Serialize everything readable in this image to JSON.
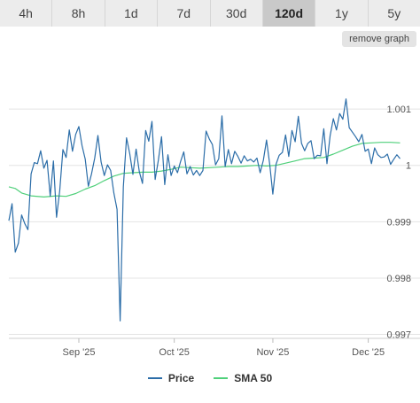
{
  "tabs": [
    {
      "label": "4h",
      "active": false
    },
    {
      "label": "8h",
      "active": false
    },
    {
      "label": "1d",
      "active": false
    },
    {
      "label": "7d",
      "active": false
    },
    {
      "label": "30d",
      "active": false
    },
    {
      "label": "120d",
      "active": true
    },
    {
      "label": "1y",
      "active": false
    },
    {
      "label": "5y",
      "active": false
    }
  ],
  "remove_graph_label": "remove graph",
  "legend": {
    "price_label": "Price",
    "sma_label": "SMA 50"
  },
  "colors": {
    "price": "#2b6da8",
    "sma": "#4fd07a",
    "grid": "#e4e4e4",
    "axis_text": "#555555"
  },
  "chart_data": {
    "type": "line",
    "x_start": "2025-08-10",
    "x_end": "2025-12-05",
    "x_ticks": [
      {
        "date": "2025-09-01",
        "label": "Sep '25"
      },
      {
        "date": "2025-10-01",
        "label": "Oct '25"
      },
      {
        "date": "2025-11-01",
        "label": "Nov '25"
      },
      {
        "date": "2025-12-01",
        "label": "Dec '25"
      }
    ],
    "y_ticks": [
      0.997,
      0.998,
      0.999,
      1,
      1.001
    ],
    "y_tick_labels": [
      "0.997",
      "0.998",
      "0.999",
      "1",
      "1.001"
    ],
    "ylim": [
      0.99693,
      1.00193
    ],
    "grid": true,
    "legend_position": "bottom-center",
    "series": [
      {
        "name": "Price",
        "points": [
          [
            "2025-08-10",
            0.99902
          ],
          [
            "2025-08-11",
            0.99932
          ],
          [
            "2025-08-12",
            0.99846
          ],
          [
            "2025-08-13",
            0.99862
          ],
          [
            "2025-08-14",
            0.99912
          ],
          [
            "2025-08-15",
            0.99897
          ],
          [
            "2025-08-16",
            0.99886
          ],
          [
            "2025-08-17",
            0.99985
          ],
          [
            "2025-08-18",
            1.00005
          ],
          [
            "2025-08-19",
            1.00003
          ],
          [
            "2025-08-20",
            1.00026
          ],
          [
            "2025-08-21",
            0.99995
          ],
          [
            "2025-08-22",
            1.00009
          ],
          [
            "2025-08-23",
            0.99945
          ],
          [
            "2025-08-24",
            1.00008
          ],
          [
            "2025-08-25",
            0.99908
          ],
          [
            "2025-08-26",
            0.99955
          ],
          [
            "2025-08-27",
            1.00028
          ],
          [
            "2025-08-28",
            1.00014
          ],
          [
            "2025-08-29",
            1.00063
          ],
          [
            "2025-08-30",
            1.00025
          ],
          [
            "2025-08-31",
            1.00055
          ],
          [
            "2025-09-01",
            1.00069
          ],
          [
            "2025-09-02",
            1.00035
          ],
          [
            "2025-09-03",
            1.00011
          ],
          [
            "2025-09-04",
            0.99963
          ],
          [
            "2025-09-05",
            0.99985
          ],
          [
            "2025-09-06",
            1.00013
          ],
          [
            "2025-09-07",
            1.00053
          ],
          [
            "2025-09-08",
            1.00006
          ],
          [
            "2025-09-09",
            0.99982
          ],
          [
            "2025-09-10",
            1.00001
          ],
          [
            "2025-09-11",
            0.99991
          ],
          [
            "2025-09-12",
            0.99951
          ],
          [
            "2025-09-13",
            0.99922
          ],
          [
            "2025-09-14",
            0.99724
          ],
          [
            "2025-09-15",
            0.99962
          ],
          [
            "2025-09-16",
            1.00049
          ],
          [
            "2025-09-17",
            1.00021
          ],
          [
            "2025-09-18",
            0.99984
          ],
          [
            "2025-09-19",
            1.00029
          ],
          [
            "2025-09-20",
            0.99989
          ],
          [
            "2025-09-21",
            0.99968
          ],
          [
            "2025-09-22",
            1.00062
          ],
          [
            "2025-09-23",
            1.00043
          ],
          [
            "2025-09-24",
            1.00078
          ],
          [
            "2025-09-25",
            0.99975
          ],
          [
            "2025-09-26",
            1.00009
          ],
          [
            "2025-09-27",
            1.00051
          ],
          [
            "2025-09-28",
            0.99966
          ],
          [
            "2025-09-29",
            1.00019
          ],
          [
            "2025-09-30",
            0.99982
          ],
          [
            "2025-10-01",
            0.99999
          ],
          [
            "2025-10-02",
            0.99987
          ],
          [
            "2025-10-03",
            1.00007
          ],
          [
            "2025-10-04",
            1.00024
          ],
          [
            "2025-10-05",
            0.99985
          ],
          [
            "2025-10-06",
            0.99998
          ],
          [
            "2025-10-07",
            0.99983
          ],
          [
            "2025-10-08",
            0.99991
          ],
          [
            "2025-10-09",
            0.99982
          ],
          [
            "2025-10-10",
            0.99991
          ],
          [
            "2025-10-11",
            1.00061
          ],
          [
            "2025-10-12",
            1.00047
          ],
          [
            "2025-10-13",
            1.00037
          ],
          [
            "2025-10-14",
            1.00001
          ],
          [
            "2025-10-15",
            1.00012
          ],
          [
            "2025-10-16",
            1.00088
          ],
          [
            "2025-10-17",
            0.99998
          ],
          [
            "2025-10-18",
            1.00028
          ],
          [
            "2025-10-19",
            1.00003
          ],
          [
            "2025-10-20",
            1.00025
          ],
          [
            "2025-10-21",
            1.00016
          ],
          [
            "2025-10-22",
            1.00004
          ],
          [
            "2025-10-23",
            1.00017
          ],
          [
            "2025-10-24",
            1.00008
          ],
          [
            "2025-10-25",
            1.00011
          ],
          [
            "2025-10-26",
            1.00006
          ],
          [
            "2025-10-27",
            1.00013
          ],
          [
            "2025-10-28",
            0.99987
          ],
          [
            "2025-10-29",
            1.00009
          ],
          [
            "2025-10-30",
            1.00045
          ],
          [
            "2025-10-31",
            1.00002
          ],
          [
            "2025-11-01",
            0.99949
          ],
          [
            "2025-11-02",
            1.00002
          ],
          [
            "2025-11-03",
            1.00018
          ],
          [
            "2025-11-04",
            1.00023
          ],
          [
            "2025-11-05",
            1.00054
          ],
          [
            "2025-11-06",
            1.00016
          ],
          [
            "2025-11-07",
            1.00062
          ],
          [
            "2025-11-08",
            1.00042
          ],
          [
            "2025-11-09",
            1.00087
          ],
          [
            "2025-11-10",
            1.00039
          ],
          [
            "2025-11-11",
            1.00026
          ],
          [
            "2025-11-12",
            1.00039
          ],
          [
            "2025-11-13",
            1.00044
          ],
          [
            "2025-11-14",
            1.00012
          ],
          [
            "2025-11-15",
            1.00018
          ],
          [
            "2025-11-16",
            1.00017
          ],
          [
            "2025-11-17",
            1.00065
          ],
          [
            "2025-11-18",
            1.00003
          ],
          [
            "2025-11-19",
            1.00053
          ],
          [
            "2025-11-20",
            1.00083
          ],
          [
            "2025-11-21",
            1.00063
          ],
          [
            "2025-11-22",
            1.00092
          ],
          [
            "2025-11-23",
            1.00082
          ],
          [
            "2025-11-24",
            1.00118
          ],
          [
            "2025-11-25",
            1.00067
          ],
          [
            "2025-11-26",
            1.00059
          ],
          [
            "2025-11-27",
            1.00051
          ],
          [
            "2025-11-28",
            1.00042
          ],
          [
            "2025-11-29",
            1.00055
          ],
          [
            "2025-11-30",
            1.00025
          ],
          [
            "2025-12-01",
            1.00029
          ],
          [
            "2025-12-02",
            1.00003
          ],
          [
            "2025-12-03",
            1.00031
          ],
          [
            "2025-12-04",
            1.00019
          ],
          [
            "2025-12-05",
            1.00014
          ],
          [
            "2025-12-06",
            1.00015
          ],
          [
            "2025-12-07",
            1.0002
          ],
          [
            "2025-12-08",
            1.00002
          ],
          [
            "2025-12-09",
            1.00011
          ],
          [
            "2025-12-10",
            1.00019
          ],
          [
            "2025-12-11",
            1.00012
          ]
        ]
      },
      {
        "name": "SMA 50",
        "points": [
          [
            "2025-08-10",
            0.99962
          ],
          [
            "2025-08-12",
            0.99959
          ],
          [
            "2025-08-14",
            0.99951
          ],
          [
            "2025-08-17",
            0.99946
          ],
          [
            "2025-08-21",
            0.99944
          ],
          [
            "2025-08-25",
            0.99946
          ],
          [
            "2025-08-28",
            0.99945
          ],
          [
            "2025-08-31",
            0.9995
          ],
          [
            "2025-09-03",
            0.99958
          ],
          [
            "2025-09-06",
            0.99964
          ],
          [
            "2025-09-09",
            0.99973
          ],
          [
            "2025-09-12",
            0.99981
          ],
          [
            "2025-09-15",
            0.99986
          ],
          [
            "2025-09-18",
            0.99987
          ],
          [
            "2025-09-21",
            0.99988
          ],
          [
            "2025-09-24",
            0.99988
          ],
          [
            "2025-09-27",
            0.9999
          ],
          [
            "2025-09-30",
            0.99993
          ],
          [
            "2025-10-03",
            0.99997
          ],
          [
            "2025-10-06",
            0.99996
          ],
          [
            "2025-10-09",
            0.99995
          ],
          [
            "2025-10-12",
            0.99996
          ],
          [
            "2025-10-15",
            0.99997
          ],
          [
            "2025-10-18",
            0.99998
          ],
          [
            "2025-10-21",
            0.99998
          ],
          [
            "2025-10-24",
            0.99999
          ],
          [
            "2025-10-27",
            1.0
          ],
          [
            "2025-10-30",
            0.99999
          ],
          [
            "2025-11-02",
            1.0
          ],
          [
            "2025-11-05",
            1.00004
          ],
          [
            "2025-11-08",
            1.00008
          ],
          [
            "2025-11-11",
            1.00012
          ],
          [
            "2025-11-14",
            1.00013
          ],
          [
            "2025-11-17",
            1.00014
          ],
          [
            "2025-11-20",
            1.0002
          ],
          [
            "2025-11-23",
            1.00027
          ],
          [
            "2025-11-26",
            1.00034
          ],
          [
            "2025-11-29",
            1.00039
          ],
          [
            "2025-12-02",
            1.0004
          ],
          [
            "2025-12-05",
            1.00041
          ],
          [
            "2025-12-08",
            1.00041
          ],
          [
            "2025-12-11",
            1.0004
          ]
        ]
      }
    ]
  }
}
